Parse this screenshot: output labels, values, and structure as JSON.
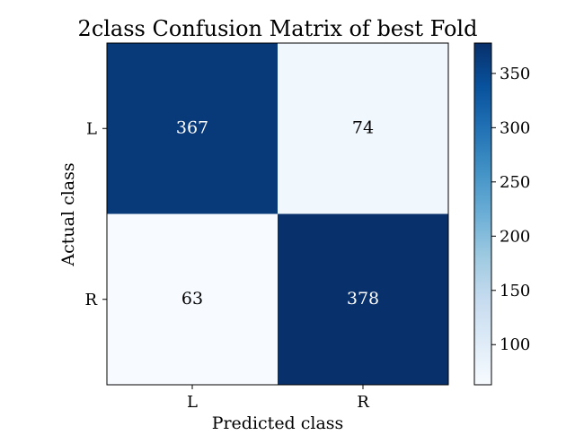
{
  "chart_data": {
    "type": "heatmap",
    "title": "2class Confusion Matrix of best Fold",
    "xlabel": "Predicted class",
    "ylabel": "Actual class",
    "x_categories": [
      "L",
      "R"
    ],
    "y_categories": [
      "L",
      "R"
    ],
    "values": [
      [
        367,
        74
      ],
      [
        63,
        378
      ]
    ],
    "colormap": "Blues",
    "vmin": 63,
    "vmax": 378,
    "colorbar_ticks": [
      100,
      150,
      200,
      250,
      300,
      350
    ],
    "grid": false,
    "legend": "colorbar-right"
  }
}
